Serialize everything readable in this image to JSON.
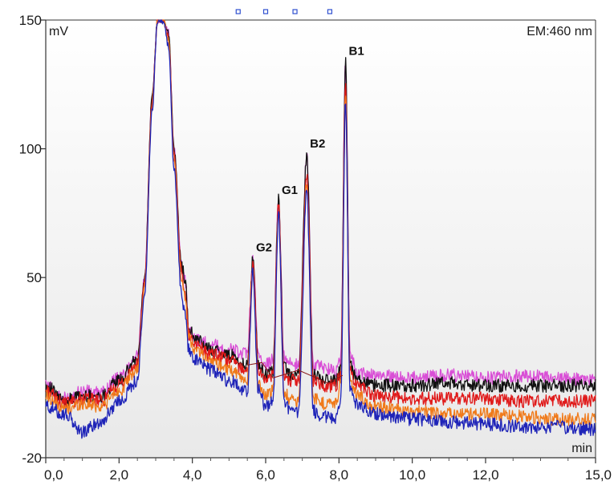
{
  "chart_data": {
    "type": "line",
    "title": "",
    "xlabel": "min",
    "ylabel": "mV",
    "detector_label": "EM:460 nm",
    "xlim": [
      0,
      15
    ],
    "ylim": [
      -20,
      150
    ],
    "x_ticks": [
      "0,0",
      "2,0",
      "4,0",
      "6,0",
      "8,0",
      "10,0",
      "12,0",
      "15,0"
    ],
    "x_tick_values": [
      0,
      2,
      4,
      6,
      8,
      10,
      12,
      15
    ],
    "y_ticks": [
      "150",
      "100",
      "50",
      "-20"
    ],
    "y_tick_values": [
      150,
      100,
      50,
      -20
    ],
    "grid": false,
    "peaks": [
      {
        "label": "G2",
        "x": 5.65,
        "y": 57
      },
      {
        "label": "G1",
        "x": 6.35,
        "y": 80
      },
      {
        "label": "B2",
        "x": 7.12,
        "y": 98
      },
      {
        "label": "B1",
        "x": 8.18,
        "y": 134
      }
    ],
    "series": [
      {
        "color": "#d94fd6",
        "x": [
          0,
          0.5,
          1,
          1.5,
          2,
          2.5,
          2.7,
          2.9,
          3.05,
          3.2,
          3.35,
          3.5,
          3.7,
          3.8,
          3.9,
          4.1,
          4.5,
          5,
          5.5,
          5.65,
          5.8,
          6.0,
          6.2,
          6.35,
          6.5,
          6.7,
          6.9,
          7.12,
          7.3,
          7.6,
          7.9,
          8.05,
          8.18,
          8.3,
          8.5,
          9,
          10,
          11,
          12,
          13,
          14,
          15
        ],
        "y": [
          8,
          3,
          6,
          5,
          11,
          20,
          50,
          120,
          150,
          150,
          145,
          100,
          55,
          50,
          30,
          26,
          24,
          22,
          20,
          57,
          20,
          16,
          18,
          80,
          20,
          16,
          16,
          98,
          16,
          15,
          14,
          18,
          134,
          20,
          13,
          12,
          11,
          12,
          11,
          12,
          11,
          10
        ]
      },
      {
        "color": "#111111",
        "x": [
          0,
          0.5,
          1,
          1.5,
          2,
          2.5,
          2.7,
          2.9,
          3.05,
          3.2,
          3.35,
          3.5,
          3.7,
          3.8,
          3.9,
          4.1,
          4.5,
          5,
          5.5,
          5.65,
          5.8,
          6.0,
          6.2,
          6.35,
          6.5,
          6.7,
          6.9,
          7.12,
          7.3,
          7.6,
          7.9,
          8.05,
          8.18,
          8.3,
          8.5,
          9,
          10,
          11,
          12,
          13,
          14,
          15
        ],
        "y": [
          8,
          2,
          4,
          4,
          10,
          18,
          50,
          120,
          150,
          150,
          145,
          100,
          55,
          50,
          30,
          26,
          22,
          20,
          16,
          57,
          16,
          12,
          14,
          80,
          15,
          12,
          12,
          98,
          12,
          10,
          10,
          14,
          134,
          16,
          10,
          8,
          8,
          9,
          8,
          8,
          8,
          8
        ]
      },
      {
        "color": "#e01a1a",
        "x": [
          0,
          0.5,
          1,
          1.5,
          2,
          2.5,
          2.7,
          2.9,
          3.05,
          3.2,
          3.35,
          3.5,
          3.7,
          3.8,
          3.9,
          4.1,
          4.5,
          5,
          5.5,
          5.65,
          5.8,
          6.0,
          6.2,
          6.35,
          6.5,
          6.7,
          6.9,
          7.12,
          7.3,
          7.6,
          7.9,
          8.05,
          8.18,
          8.3,
          8.5,
          9,
          10,
          11,
          12,
          13,
          14,
          15
        ],
        "y": [
          6,
          1,
          3,
          2,
          8,
          16,
          48,
          118,
          150,
          150,
          143,
          98,
          53,
          45,
          28,
          24,
          20,
          18,
          14,
          55,
          14,
          10,
          12,
          78,
          12,
          10,
          10,
          90,
          10,
          8,
          8,
          12,
          125,
          14,
          8,
          4,
          3,
          3,
          3,
          2,
          2,
          2
        ]
      },
      {
        "color": "#f07a1a",
        "x": [
          0,
          0.5,
          1,
          1.5,
          2,
          2.5,
          2.7,
          2.9,
          3.05,
          3.2,
          3.35,
          3.5,
          3.7,
          3.8,
          3.9,
          4.1,
          4.5,
          5,
          5.5,
          5.65,
          5.8,
          6.0,
          6.2,
          6.35,
          6.5,
          6.7,
          6.9,
          7.12,
          7.3,
          7.6,
          7.9,
          8.05,
          8.18,
          8.3,
          8.5,
          9,
          10,
          11,
          12,
          13,
          14,
          15
        ],
        "y": [
          4,
          -1,
          1,
          0,
          6,
          14,
          46,
          116,
          150,
          150,
          142,
          96,
          50,
          42,
          26,
          22,
          18,
          14,
          10,
          53,
          8,
          4,
          6,
          76,
          6,
          2,
          2,
          86,
          3,
          1,
          1,
          8,
          120,
          10,
          4,
          0,
          -2,
          -3,
          -3,
          -4,
          -5,
          -5
        ]
      },
      {
        "color": "#1f24b8",
        "x": [
          0,
          0.5,
          1,
          1.5,
          2,
          2.5,
          2.7,
          2.9,
          3.05,
          3.2,
          3.35,
          3.5,
          3.7,
          3.8,
          3.9,
          4.1,
          4.5,
          5,
          5.5,
          5.65,
          5.8,
          6.0,
          6.2,
          6.35,
          6.5,
          6.7,
          6.9,
          7.12,
          7.3,
          7.6,
          7.9,
          8.05,
          8.18,
          8.3,
          8.5,
          9,
          10,
          11,
          12,
          13,
          14,
          15
        ],
        "y": [
          0,
          -3,
          -10,
          -6,
          2,
          10,
          44,
          114,
          150,
          150,
          140,
          92,
          45,
          35,
          22,
          18,
          14,
          10,
          6,
          52,
          6,
          0,
          2,
          75,
          2,
          -2,
          -3,
          84,
          -2,
          -4,
          -5,
          2,
          118,
          6,
          0,
          -3,
          -5,
          -6,
          -7,
          -8,
          -8,
          -9
        ]
      }
    ],
    "markers_top": [
      5.25,
      6.0,
      6.8,
      7.75
    ]
  }
}
